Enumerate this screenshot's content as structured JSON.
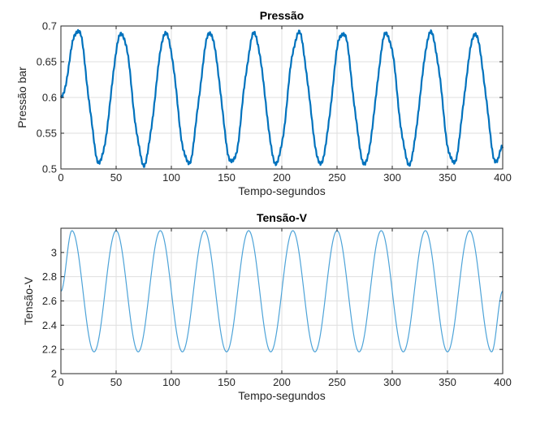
{
  "chart_data": [
    {
      "type": "line",
      "title": "Pressão",
      "xlabel": "Tempo-segundos",
      "ylabel": "Pressão bar",
      "xlim": [
        0,
        400
      ],
      "ylim": [
        0.5,
        0.7
      ],
      "xticks": [
        "0",
        "50",
        "100",
        "150",
        "200",
        "250",
        "300",
        "350",
        "400"
      ],
      "yticks": [
        "0.5",
        "0.55",
        "0.6",
        "0.65",
        "0.7"
      ],
      "grid": true,
      "color": "#0072BD",
      "series": [
        {
          "x": [
            0,
            15,
            35,
            55,
            75,
            95,
            115,
            135,
            155,
            175,
            195,
            215,
            235,
            255,
            275,
            295,
            315,
            335,
            355,
            375,
            395,
            400
          ],
          "values": [
            0.6,
            0.695,
            0.51,
            0.69,
            0.508,
            0.69,
            0.508,
            0.69,
            0.508,
            0.688,
            0.508,
            0.69,
            0.508,
            0.692,
            0.508,
            0.69,
            0.508,
            0.69,
            0.508,
            0.688,
            0.508,
            0.535
          ]
        }
      ]
    },
    {
      "type": "line",
      "title": "Tensão-V",
      "xlabel": "Tempo-segundos",
      "ylabel": "Tensão-V",
      "xlim": [
        0,
        400
      ],
      "ylim": [
        2,
        3.2
      ],
      "xticks": [
        "0",
        "50",
        "100",
        "150",
        "200",
        "250",
        "300",
        "350",
        "400"
      ],
      "yticks": [
        "2",
        "2.2",
        "2.4",
        "2.6",
        "2.8",
        "3"
      ],
      "grid": true,
      "color": "#4DA3D8",
      "series": [
        {
          "x": [
            0,
            10,
            30,
            50,
            70,
            90,
            110,
            130,
            150,
            170,
            190,
            210,
            230,
            250,
            270,
            290,
            310,
            330,
            350,
            370,
            390,
            400
          ],
          "values": [
            2.68,
            3.18,
            2.18,
            3.18,
            2.18,
            3.18,
            2.18,
            3.18,
            2.18,
            3.18,
            2.18,
            3.18,
            2.18,
            3.18,
            2.18,
            3.18,
            2.18,
            3.18,
            2.18,
            3.18,
            2.18,
            2.68
          ]
        }
      ]
    }
  ]
}
